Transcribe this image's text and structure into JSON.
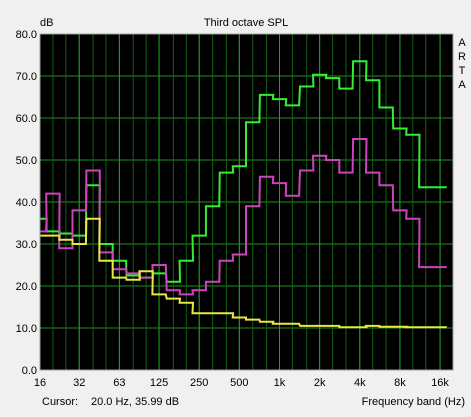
{
  "chart_data": {
    "type": "line",
    "title": "Third octave SPL",
    "ylabel": "dB",
    "xlabel": "Frequency band (Hz)",
    "side_label": [
      "A",
      "R",
      "T",
      "A"
    ],
    "cursor_label": "Cursor:",
    "cursor_value": "20.0 Hz, 35.99 dB",
    "ylim": [
      0,
      80
    ],
    "x_scale": "log",
    "xlim_hz": [
      16,
      20000
    ],
    "grid": true,
    "yticks": [
      "0.0",
      "10.0",
      "20.0",
      "30.0",
      "40.0",
      "50.0",
      "60.0",
      "70.0",
      "80.0"
    ],
    "xticks": [
      "16",
      "32",
      "63",
      "125",
      "250",
      "500",
      "1k",
      "2k",
      "4k",
      "8k",
      "16k"
    ],
    "x_bands_hz": [
      16,
      20,
      25,
      31.5,
      40,
      50,
      63,
      80,
      100,
      125,
      160,
      200,
      250,
      315,
      400,
      500,
      630,
      800,
      1000,
      1250,
      1600,
      2000,
      2500,
      3150,
      4000,
      5000,
      6300,
      8000,
      10000,
      12500,
      16000
    ],
    "series": [
      {
        "color": "#33ee33",
        "values": [
          36,
          33,
          32.5,
          32,
          44,
          30,
          26,
          22.5,
          22,
          23,
          21,
          26,
          32,
          39,
          47,
          48.5,
          59,
          65.5,
          64.5,
          63,
          67.5,
          70.3,
          69.5,
          67,
          73.5,
          69,
          62.5,
          57.5,
          56,
          43.5,
          43.5
        ]
      },
      {
        "color": "#cc44bb",
        "values": [
          33,
          42,
          29,
          38,
          47.5,
          28,
          24,
          23,
          22,
          25,
          19,
          18,
          19,
          21,
          26,
          27.5,
          39,
          46,
          44.5,
          41.5,
          47.5,
          51,
          50,
          47,
          55,
          47,
          44,
          38,
          36,
          24.5,
          24.5
        ]
      },
      {
        "color": "#e8e840",
        "values": [
          32,
          32,
          31,
          30,
          36,
          26,
          22,
          21.5,
          23.5,
          18,
          17,
          16,
          13.5,
          13.5,
          13.5,
          12.5,
          12,
          11.5,
          11,
          11,
          10.5,
          10.5,
          10.5,
          10.2,
          10.2,
          10.5,
          10.3,
          10.3,
          10.2,
          10.2,
          10.2
        ]
      }
    ]
  }
}
